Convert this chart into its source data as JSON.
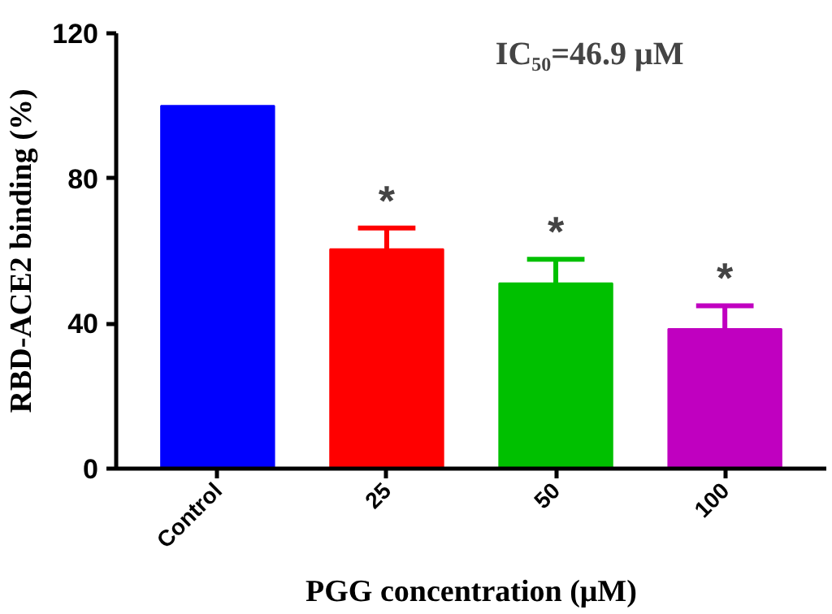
{
  "chart_data": {
    "type": "bar",
    "categories": [
      "Control",
      "25",
      "50",
      "100"
    ],
    "values": [
      100,
      60.5,
      51.1,
      38.5
    ],
    "errors": [
      null,
      [
        60.5,
        66.3
      ],
      [
        51.1,
        57.7
      ],
      [
        38.5,
        44.9
      ]
    ],
    "colors": [
      "#0000ff",
      "#ff0000",
      "#00c000",
      "#c000c0"
    ],
    "xlabel": "PGG concentration (μM)",
    "ylabel": "RBD-ACE2 binding (%)",
    "ylim": [
      0,
      120
    ],
    "yticks": [
      0,
      40,
      80,
      120
    ],
    "grid": false,
    "annotations": [
      {
        "text": "IC₅₀=46.9 μM"
      },
      {
        "text": "*",
        "x": "25",
        "y": 66.3
      },
      {
        "text": "*",
        "x": "50",
        "y": 57.7
      },
      {
        "text": "*",
        "x": "100",
        "y": 44.9
      }
    ]
  }
}
